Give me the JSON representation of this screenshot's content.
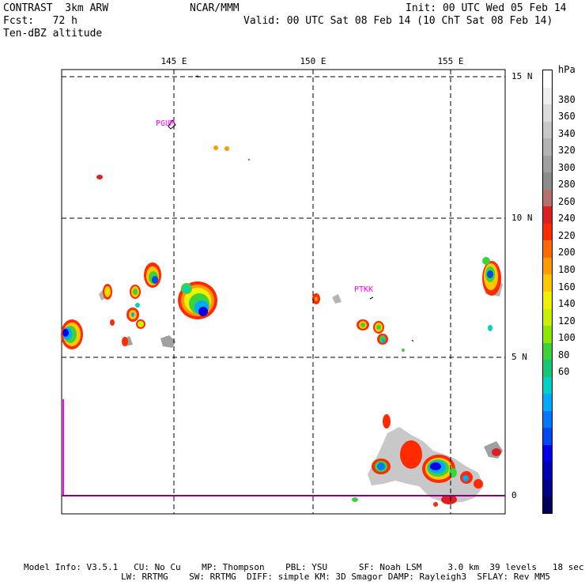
{
  "header": {
    "model": "CONTRAST  3km ARW",
    "forecast": "Fcst:   72 h",
    "field": "Ten-dBZ altitude",
    "center": "NCAR/MMM",
    "init": "Init: 00 UTC Wed 05 Feb 14",
    "valid": "Valid: 00 UTC Sat 08 Feb 14 (10 ChT Sat 08 Feb 14)"
  },
  "axes": {
    "lon_labels": [
      "145 E",
      "150 E",
      "155 E"
    ],
    "lat_labels": [
      "15 N",
      "10 N",
      "5 N",
      "0"
    ]
  },
  "stations": [
    {
      "id": "PGUM"
    },
    {
      "id": "PTKK"
    }
  ],
  "colorbar": {
    "unit": "hPa",
    "labels": [
      "380",
      "360",
      "340",
      "320",
      "300",
      "280",
      "260",
      "240",
      "220",
      "200",
      "180",
      "160",
      "140",
      "120",
      "100",
      "80",
      "60"
    ],
    "colors": [
      "#ffffff",
      "#efefef",
      "#dcdcdc",
      "#c8c8c8",
      "#b4b4b4",
      "#a0a0a0",
      "#8c8c8c",
      "#b4706c",
      "#dc2020",
      "#ff2a00",
      "#ff6a00",
      "#ff9a00",
      "#ffc800",
      "#f0f000",
      "#c8f000",
      "#8ce600",
      "#3cd23c",
      "#14c878",
      "#00d2c8",
      "#00aaff",
      "#0078ff",
      "#0048f0",
      "#0000e6",
      "#0000b4",
      "#00008c",
      "#00005a"
    ]
  },
  "footer": {
    "line1": "Model Info: V3.5.1   CU: No Cu    MP: Thompson    PBL: YSU      SF: Noah LSM     3.0 km  39 levels   18 sec",
    "line2": "LW: RRTMG    SW: RRTMG  DIFF: simple KM: 3D Smagor DAMP: Rayleigh3  SFLAY: Rev MM5"
  }
}
